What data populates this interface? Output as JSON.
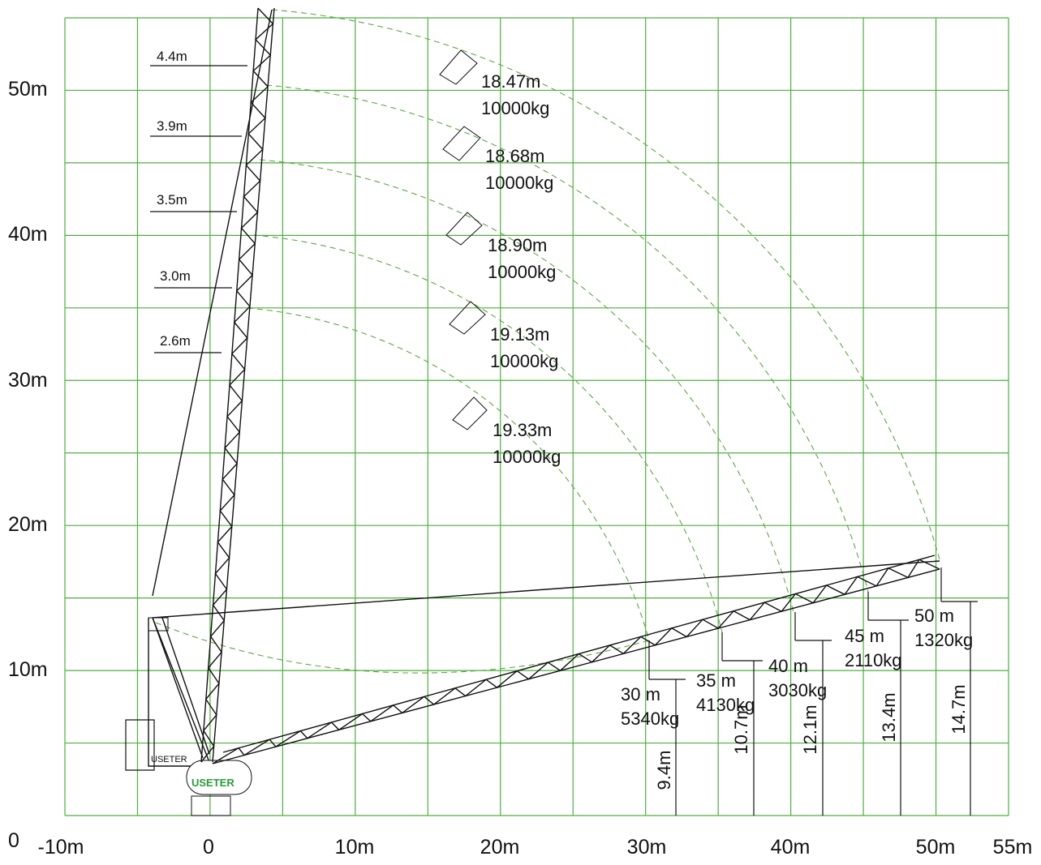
{
  "x_axis": {
    "labels": [
      "-10m",
      "0",
      "10m",
      "20m",
      "30m",
      "40m",
      "50m",
      "55m"
    ]
  },
  "y_axis": {
    "labels": [
      "0",
      "10m",
      "20m",
      "30m",
      "40m",
      "50m"
    ]
  },
  "widths": [
    "4.4m",
    "3.9m",
    "3.5m",
    "3.0m",
    "2.6m"
  ],
  "luffed_loads": [
    {
      "radius": "18.47m",
      "load": "10000kg"
    },
    {
      "radius": "18.68m",
      "load": "10000kg"
    },
    {
      "radius": "18.90m",
      "load": "10000kg"
    },
    {
      "radius": "19.13m",
      "load": "10000kg"
    },
    {
      "radius": "19.33m",
      "load": "10000kg"
    }
  ],
  "horizontal_loads": [
    {
      "jib": "30 m",
      "load": "5340kg",
      "height": "9.4m"
    },
    {
      "jib": "35 m",
      "load": "4130kg",
      "height": "10.7m"
    },
    {
      "jib": "40 m",
      "load": "3030kg",
      "height": "12.1m"
    },
    {
      "jib": "45 m",
      "load": "2110kg",
      "height": "13.4m"
    },
    {
      "jib": "50 m",
      "load": "1320kg",
      "height": "14.7m"
    }
  ],
  "logo": "USETER"
}
